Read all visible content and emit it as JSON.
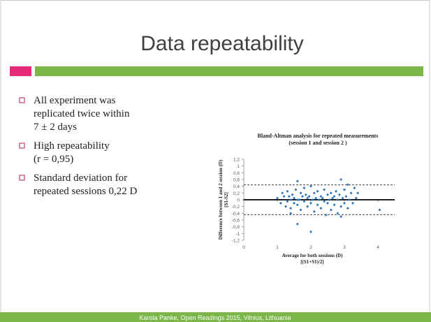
{
  "title": "Data repeatability",
  "bullets": [
    {
      "lines": [
        "All experiment was",
        "replicated twice within",
        "7 ± 2 days"
      ]
    },
    {
      "lines": [
        "High repeatability",
        "(r = 0,95)"
      ]
    },
    {
      "lines": [
        "Standard deviation for",
        "repeated sessions 0,22 D"
      ]
    }
  ],
  "footer": "Karola Panke, Open Readings 2015, Vilnius, Lithuania",
  "chart_data": {
    "type": "scatter",
    "title": [
      "Bland-Altman  analysis for repeated measurements",
      "(session 1 and session 2 )"
    ],
    "ylabel": [
      "Difference between 1 and 2 session (D)",
      "[S1-S2]"
    ],
    "xlabel": [
      "Average for both sessions (D)",
      "[(S1+S1)/2]"
    ],
    "xlim": [
      0,
      4.5
    ],
    "xticks": [
      0,
      1,
      2,
      3,
      4
    ],
    "ylim": [
      -1.2,
      1.2
    ],
    "yticks": [
      {
        "value": 1.2,
        "label": "1,2"
      },
      1,
      {
        "value": 0.8,
        "label": "0,8"
      },
      {
        "value": 0.6,
        "label": "0,6"
      },
      {
        "value": 0.4,
        "label": "0,4"
      },
      {
        "value": 0.2,
        "label": "0,2"
      },
      0,
      {
        "value": -0.2,
        "label": "-0,2"
      },
      {
        "value": -0.4,
        "label": "-0,4"
      },
      {
        "value": -0.6,
        "label": "-0,6"
      },
      {
        "value": -0.8,
        "label": "-0,8"
      },
      -1,
      {
        "value": -1.2,
        "label": "-1,2"
      }
    ],
    "reference_lines": [
      {
        "value": 0.44,
        "dashed": true
      },
      {
        "value": 0,
        "dashed": false
      },
      {
        "value": -0.44,
        "dashed": true
      }
    ],
    "series": [
      {
        "color": "#2e75b6",
        "x": [
          1.0,
          1.1,
          1.15,
          1.2,
          1.25,
          1.3,
          1.3,
          1.35,
          1.4,
          1.4,
          1.45,
          1.5,
          1.5,
          1.55,
          1.6,
          1.6,
          1.65,
          1.7,
          1.7,
          1.75,
          1.8,
          1.8,
          1.85,
          1.9,
          1.9,
          1.95,
          2.0,
          2.0,
          2.05,
          2.1,
          2.1,
          2.15,
          2.2,
          2.2,
          2.25,
          2.3,
          2.3,
          2.35,
          2.4,
          2.4,
          2.45,
          2.5,
          2.5,
          2.55,
          2.6,
          2.6,
          2.65,
          2.7,
          2.7,
          2.75,
          2.8,
          2.8,
          2.85,
          2.9,
          2.9,
          2.95,
          3.0,
          3.0,
          3.05,
          3.1,
          3.1,
          3.15,
          3.2,
          3.25,
          3.3,
          3.35,
          3.4,
          4.05,
          1.6,
          2.0,
          2.9,
          1.4,
          1.6
        ],
        "values": [
          0.05,
          -0.1,
          0.2,
          0.1,
          -0.2,
          0.25,
          -0.05,
          0.1,
          0.0,
          -0.25,
          0.15,
          0.05,
          -0.1,
          0.3,
          0.55,
          -0.15,
          0.0,
          0.2,
          -0.3,
          0.1,
          -0.05,
          0.35,
          0.15,
          -0.2,
          0.05,
          0.1,
          0.4,
          -0.1,
          0.0,
          -0.35,
          0.2,
          0.05,
          -0.15,
          0.25,
          0.0,
          0.1,
          -0.25,
          0.05,
          -0.05,
          0.3,
          -0.45,
          0.15,
          -0.1,
          0.0,
          0.2,
          -0.3,
          0.05,
          0.1,
          -0.15,
          0.25,
          0.0,
          -0.4,
          0.15,
          0.6,
          -0.2,
          0.05,
          0.3,
          -0.1,
          0.1,
          0.45,
          -0.25,
          0.0,
          0.2,
          -0.1,
          0.35,
          0.05,
          0.2,
          -0.3,
          -0.72,
          -0.95,
          -0.5,
          -0.4,
          0.0
        ]
      }
    ]
  }
}
